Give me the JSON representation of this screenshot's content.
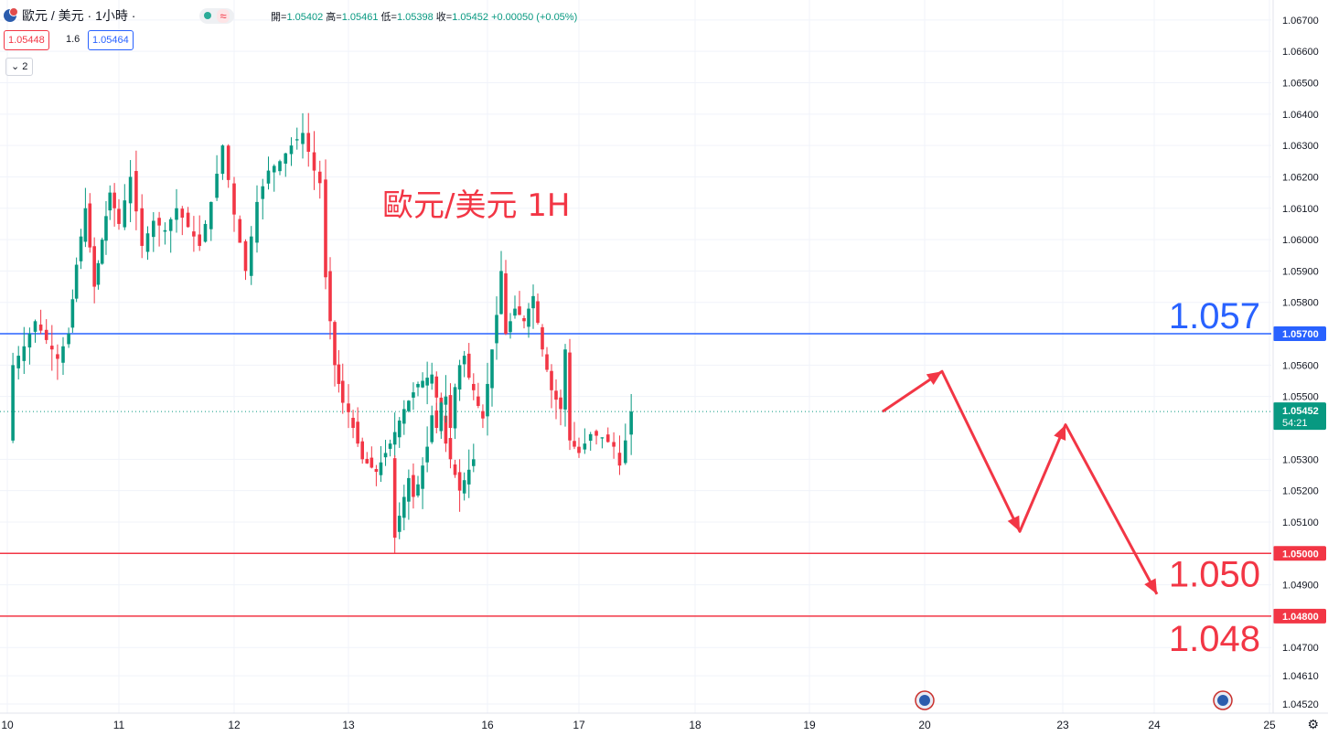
{
  "header": {
    "title": "歐元 / 美元 · 1小時 ·",
    "status_wave": "≈",
    "ohlc": [
      {
        "label": "開=",
        "value": "1.05402"
      },
      {
        "label": "高=",
        "value": "1.05461"
      },
      {
        "label": "低=",
        "value": "1.05398"
      },
      {
        "label": "收=",
        "value": "1.05452"
      },
      {
        "label": "",
        "value": "+0.00050 (+0.05%)"
      }
    ],
    "sell_price": "1.05448",
    "spread": "1.6",
    "buy_price": "1.05464",
    "indicator_badge": "2"
  },
  "colors": {
    "up": "#089981",
    "down": "#f23645",
    "resistance": "#2962ff",
    "support": "#f23645",
    "arrow": "#f23645"
  },
  "chart_data": {
    "type": "candlestick",
    "title": "歐元/美元 1H",
    "ylim": [
      1.0452,
      1.0672
    ],
    "y_ticks": [
      "1.06700",
      "1.06600",
      "1.06500",
      "1.06400",
      "1.06300",
      "1.06200",
      "1.06100",
      "1.06000",
      "1.05900",
      "1.05800",
      "1.05600",
      "1.05500",
      "1.05300",
      "1.05200",
      "1.05100",
      "1.04900",
      "1.04700",
      "1.04610",
      "1.04520"
    ],
    "x_ticks": [
      "10",
      "11",
      "12",
      "13",
      "16",
      "17",
      "18",
      "19",
      "20",
      "23",
      "24",
      "25"
    ],
    "grid": true,
    "current_price": {
      "value": 1.05452,
      "label": "1.05452",
      "countdown": "54:21"
    },
    "levels": [
      {
        "value": 1.057,
        "label": "1.057",
        "axis_label": "1.05700",
        "color": "#2962ff"
      },
      {
        "value": 1.05,
        "label": "1.050",
        "axis_label": "1.05000",
        "color": "#f23645"
      },
      {
        "value": 1.048,
        "label": "1.048",
        "axis_label": "1.04800",
        "color": "#f23645"
      }
    ],
    "candles_close_path": [
      [
        10,
        1.0536
      ],
      [
        10.05,
        1.056
      ],
      [
        10.15,
        1.0566
      ],
      [
        10.25,
        1.0574
      ],
      [
        10.35,
        1.0568
      ],
      [
        10.45,
        1.0562
      ],
      [
        10.55,
        1.057
      ],
      [
        10.62,
        1.0592
      ],
      [
        10.7,
        1.061
      ],
      [
        10.78,
        1.0585
      ],
      [
        10.85,
        1.06
      ],
      [
        10.92,
        1.0615
      ],
      [
        11.0,
        1.0605
      ],
      [
        11.1,
        1.062
      ],
      [
        11.2,
        1.0598
      ],
      [
        11.3,
        1.0606
      ],
      [
        11.4,
        1.0603
      ],
      [
        11.5,
        1.061
      ],
      [
        11.6,
        1.0604
      ],
      [
        11.7,
        1.0598
      ],
      [
        11.8,
        1.0612
      ],
      [
        11.9,
        1.063
      ],
      [
        12.0,
        1.0608
      ],
      [
        12.1,
        1.059
      ],
      [
        12.2,
        1.0612
      ],
      [
        12.3,
        1.0622
      ],
      [
        12.4,
        1.0625
      ],
      [
        12.5,
        1.063
      ],
      [
        12.6,
        1.0634
      ],
      [
        12.7,
        1.0622
      ],
      [
        12.75,
        1.0618
      ],
      [
        12.8,
        1.0588
      ],
      [
        12.88,
        1.056
      ],
      [
        12.95,
        1.0548
      ],
      [
        13.0,
        1.0545
      ],
      [
        13.1,
        1.053
      ],
      [
        13.2,
        1.0526
      ],
      [
        13.3,
        1.0535
      ],
      [
        13.4,
        1.0546
      ],
      [
        13.5,
        1.0554
      ],
      [
        13.6,
        1.0557
      ],
      [
        13.7,
        1.0535
      ],
      [
        13.8,
        1.052
      ],
      [
        13.9,
        1.053
      ],
      [
        14.0,
        1.0505
      ],
      [
        14.1,
        1.0512
      ],
      [
        14.2,
        1.0518
      ],
      [
        14.3,
        1.0524
      ],
      [
        14.4,
        1.0518
      ],
      [
        14.5,
        1.0522
      ],
      [
        14.6,
        1.0528
      ],
      [
        14.7,
        1.0534
      ],
      [
        14.8,
        1.0544
      ],
      [
        14.9,
        1.054
      ],
      [
        15.0,
        1.0548
      ],
      [
        15.1,
        1.055
      ],
      [
        15.2,
        1.054
      ],
      [
        15.3,
        1.0553
      ],
      [
        15.4,
        1.056
      ],
      [
        15.5,
        1.0563
      ],
      [
        15.6,
        1.0556
      ],
      [
        15.7,
        1.0552
      ],
      [
        15.8,
        1.0547
      ],
      [
        15.9,
        1.0543
      ],
      [
        16.0,
        1.0554
      ],
      [
        16.1,
        1.0576
      ],
      [
        16.15,
        1.059
      ],
      [
        16.2,
        1.057
      ],
      [
        16.3,
        1.0578
      ],
      [
        16.4,
        1.0574
      ],
      [
        16.5,
        1.0582
      ],
      [
        16.6,
        1.0565
      ],
      [
        16.7,
        1.0552
      ],
      [
        16.8,
        1.0546
      ],
      [
        16.85,
        1.0565
      ],
      [
        16.9,
        1.0536
      ],
      [
        17.0,
        1.0532
      ],
      [
        17.1,
        1.0538
      ],
      [
        17.2,
        1.0537
      ],
      [
        17.3,
        1.0534
      ],
      [
        17.35,
        1.0528
      ],
      [
        17.4,
        1.0536
      ],
      [
        17.45,
        1.05452
      ]
    ],
    "forecast_path": [
      [
        17.45,
        1.05452
      ],
      [
        18.0,
        1.0558
      ],
      [
        18.9,
        1.0507
      ],
      [
        19.3,
        1.0541
      ],
      [
        20.2,
        1.0487
      ]
    ]
  }
}
